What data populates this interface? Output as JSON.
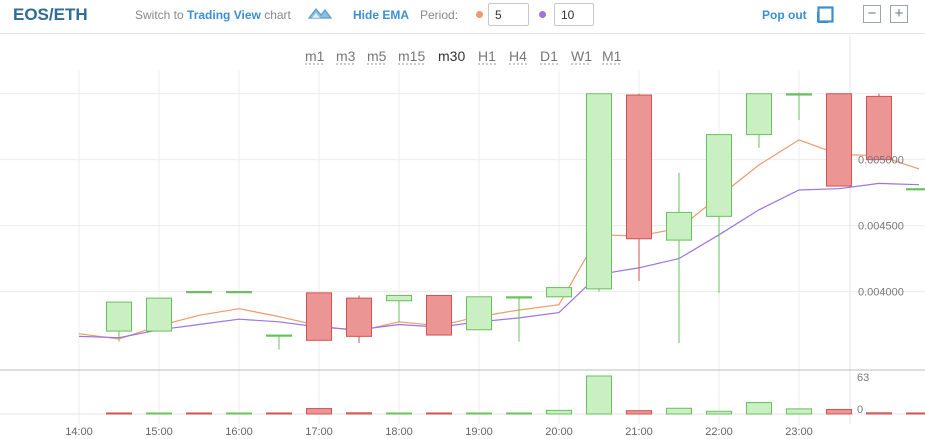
{
  "header": {
    "pair": "EOS/ETH",
    "switch_prefix": "Switch to",
    "switch_link": "Trading View",
    "switch_suffix": "chart",
    "hide_ema": "Hide EMA",
    "period_label": "Period:",
    "period_1": "5",
    "period_2": "10",
    "popout": "Pop out",
    "minimize_label": "−",
    "maximize_label": "+"
  },
  "timeframes": [
    "m1",
    "m3",
    "m5",
    "m15",
    "m30",
    "H1",
    "H4",
    "D1",
    "W1",
    "M1"
  ],
  "active_timeframe": "m30",
  "colors": {
    "up_fill": "#c9efc2",
    "up_stroke": "#68c15c",
    "down_fill": "#ec9595",
    "down_stroke": "#d05252",
    "ema_fast": "#ee9a6b",
    "ema_slow": "#9b74e6",
    "link": "#3c8fd0",
    "title": "#2f6c96"
  },
  "chart_data": {
    "type": "candlestick",
    "x_ticks": [
      "14:00",
      "15:00",
      "16:00",
      "17:00",
      "18:00",
      "19:00",
      "20:00",
      "21:00",
      "22:00",
      "23:00"
    ],
    "y_ticks": [
      0.004,
      0.0045,
      0.005
    ],
    "y_tick_labels": [
      "0.004000",
      "0.004500",
      "0.005000"
    ],
    "ylim": [
      0.00342,
      0.00568
    ],
    "volume_ticks": [
      "63",
      "0"
    ],
    "volume_max": 63,
    "grid": true,
    "candles": [
      {
        "t": 1.5,
        "o": 0.0037,
        "h": 0.00392,
        "l": 0.00362,
        "c": 0.00392
      },
      {
        "t": 2.0,
        "o": 0.0037,
        "h": 0.00395,
        "l": 0.0037,
        "c": 0.00395
      },
      {
        "t": 2.5,
        "o": 0.004,
        "h": 0.004,
        "l": 0.004,
        "c": 0.004
      },
      {
        "t": 3.0,
        "o": 0.004,
        "h": 0.004,
        "l": 0.004,
        "c": 0.004
      },
      {
        "t": 3.5,
        "o": 0.00367,
        "h": 0.00367,
        "l": 0.00356,
        "c": 0.00367
      },
      {
        "t": 4.0,
        "o": 0.00399,
        "h": 0.00399,
        "l": 0.00363,
        "c": 0.00363
      },
      {
        "t": 4.5,
        "o": 0.00395,
        "h": 0.00397,
        "l": 0.00361,
        "c": 0.00366
      },
      {
        "t": 5.0,
        "o": 0.00393,
        "h": 0.00397,
        "l": 0.00377,
        "c": 0.00397
      },
      {
        "t": 5.5,
        "o": 0.00397,
        "h": 0.00397,
        "l": 0.00367,
        "c": 0.00367
      },
      {
        "t": 6.0,
        "o": 0.00371,
        "h": 0.00396,
        "l": 0.00371,
        "c": 0.00396
      },
      {
        "t": 6.5,
        "o": 0.00396,
        "h": 0.00396,
        "l": 0.00362,
        "c": 0.00396
      },
      {
        "t": 7.0,
        "o": 0.00396,
        "h": 0.00403,
        "l": 0.00396,
        "c": 0.00403
      },
      {
        "t": 7.5,
        "o": 0.00402,
        "h": 0.0055,
        "l": 0.004,
        "c": 0.0055
      },
      {
        "t": 8.0,
        "o": 0.00549,
        "h": 0.0055,
        "l": 0.00408,
        "c": 0.0044
      },
      {
        "t": 8.5,
        "o": 0.00439,
        "h": 0.0049,
        "l": 0.00361,
        "c": 0.0046
      },
      {
        "t": 9.0,
        "o": 0.00457,
        "h": 0.00519,
        "l": 0.00399,
        "c": 0.00519
      },
      {
        "t": 9.5,
        "o": 0.00519,
        "h": 0.0055,
        "l": 0.00509,
        "c": 0.0055
      },
      {
        "t": 10.0,
        "o": 0.00549,
        "h": 0.00551,
        "l": 0.0053,
        "c": 0.0055
      },
      {
        "t": 10.5,
        "o": 0.0055,
        "h": 0.0055,
        "l": 0.0048,
        "c": 0.0048
      },
      {
        "t": 11.0,
        "o": 0.00548,
        "h": 0.0055,
        "l": 0.005,
        "c": 0.005
      },
      {
        "t": 11.5,
        "o": 0.00478,
        "h": 0.00478,
        "l": 0.00478,
        "c": 0.00478
      }
    ],
    "volumes": [
      {
        "t": 1.5,
        "v": 0.5,
        "dir": "down"
      },
      {
        "t": 2.0,
        "v": 0.5,
        "dir": "up"
      },
      {
        "t": 2.5,
        "v": 0.5,
        "dir": "down"
      },
      {
        "t": 3.0,
        "v": 0.3,
        "dir": "up"
      },
      {
        "t": 3.5,
        "v": 0.3,
        "dir": "down"
      },
      {
        "t": 4.0,
        "v": 9,
        "dir": "down"
      },
      {
        "t": 4.5,
        "v": 2,
        "dir": "down"
      },
      {
        "t": 5.0,
        "v": 0.3,
        "dir": "up"
      },
      {
        "t": 5.5,
        "v": 0.5,
        "dir": "down"
      },
      {
        "t": 6.0,
        "v": 0.5,
        "dir": "up"
      },
      {
        "t": 6.5,
        "v": 1,
        "dir": "up"
      },
      {
        "t": 7.0,
        "v": 6,
        "dir": "up"
      },
      {
        "t": 7.5,
        "v": 63,
        "dir": "up"
      },
      {
        "t": 8.0,
        "v": 5.5,
        "dir": "down"
      },
      {
        "t": 8.5,
        "v": 9.5,
        "dir": "up"
      },
      {
        "t": 9.0,
        "v": 4.5,
        "dir": "up"
      },
      {
        "t": 9.5,
        "v": 19,
        "dir": "up"
      },
      {
        "t": 10.0,
        "v": 8.5,
        "dir": "up"
      },
      {
        "t": 10.5,
        "v": 7.5,
        "dir": "down"
      },
      {
        "t": 11.0,
        "v": 2,
        "dir": "down"
      },
      {
        "t": 11.5,
        "v": 0.3,
        "dir": "down"
      }
    ],
    "ema_fast": [
      {
        "t": 1.0,
        "y": 0.00368
      },
      {
        "t": 1.5,
        "y": 0.00364
      },
      {
        "t": 2.0,
        "y": 0.00374
      },
      {
        "t": 2.5,
        "y": 0.00382
      },
      {
        "t": 3.0,
        "y": 0.00387
      },
      {
        "t": 3.5,
        "y": 0.00381
      },
      {
        "t": 4.0,
        "y": 0.00374
      },
      {
        "t": 4.5,
        "y": 0.0037
      },
      {
        "t": 5.0,
        "y": 0.00377
      },
      {
        "t": 5.5,
        "y": 0.00374
      },
      {
        "t": 6.0,
        "y": 0.00381
      },
      {
        "t": 6.5,
        "y": 0.00386
      },
      {
        "t": 7.0,
        "y": 0.0039
      },
      {
        "t": 7.5,
        "y": 0.00443
      },
      {
        "t": 8.0,
        "y": 0.00442
      },
      {
        "t": 8.5,
        "y": 0.00448
      },
      {
        "t": 9.0,
        "y": 0.00472
      },
      {
        "t": 9.5,
        "y": 0.00496
      },
      {
        "t": 10.0,
        "y": 0.00515
      },
      {
        "t": 10.5,
        "y": 0.00504
      },
      {
        "t": 11.0,
        "y": 0.00503
      },
      {
        "t": 11.5,
        "y": 0.00493
      }
    ],
    "ema_slow": [
      {
        "t": 1.0,
        "y": 0.00366
      },
      {
        "t": 1.5,
        "y": 0.00365
      },
      {
        "t": 2.0,
        "y": 0.00371
      },
      {
        "t": 2.5,
        "y": 0.00375
      },
      {
        "t": 3.0,
        "y": 0.00379
      },
      {
        "t": 3.5,
        "y": 0.00377
      },
      {
        "t": 4.0,
        "y": 0.00373
      },
      {
        "t": 4.5,
        "y": 0.00371
      },
      {
        "t": 5.0,
        "y": 0.00375
      },
      {
        "t": 5.5,
        "y": 0.00373
      },
      {
        "t": 6.0,
        "y": 0.00377
      },
      {
        "t": 6.5,
        "y": 0.0038
      },
      {
        "t": 7.0,
        "y": 0.00384
      },
      {
        "t": 7.5,
        "y": 0.00413
      },
      {
        "t": 8.0,
        "y": 0.00418
      },
      {
        "t": 8.5,
        "y": 0.00425
      },
      {
        "t": 9.0,
        "y": 0.00443
      },
      {
        "t": 9.5,
        "y": 0.00462
      },
      {
        "t": 10.0,
        "y": 0.00477
      },
      {
        "t": 10.5,
        "y": 0.00478
      },
      {
        "t": 11.0,
        "y": 0.00482
      },
      {
        "t": 11.5,
        "y": 0.00481
      }
    ]
  }
}
